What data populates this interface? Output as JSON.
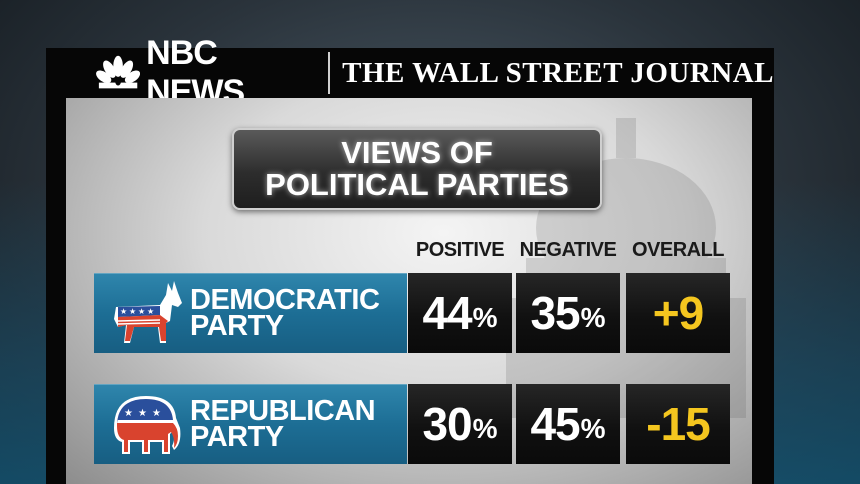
{
  "header": {
    "left_brand": "NBC NEWS",
    "right_brand": "THE WALL STREET JOURNAL"
  },
  "title_lines": [
    "VIEWS OF",
    "POLITICAL PARTIES"
  ],
  "colors": {
    "party_row": "#1d6e95",
    "value_cell": "#111111",
    "overall_text": "#f4c61f"
  },
  "chart_data": {
    "type": "table",
    "title": "VIEWS OF POLITICAL PARTIES",
    "columns": [
      "POSITIVE",
      "NEGATIVE",
      "OVERALL"
    ],
    "rows": [
      {
        "name": "DEMOCRATIC PARTY",
        "name_lines": [
          "DEMOCRATIC",
          "PARTY"
        ],
        "icon": "donkey-icon",
        "positive": 44,
        "negative": 35,
        "overall": "+9"
      },
      {
        "name": "REPUBLICAN PARTY",
        "name_lines": [
          "REPUBLICAN",
          "PARTY"
        ],
        "icon": "elephant-icon",
        "positive": 30,
        "negative": 45,
        "overall": "-15"
      }
    ],
    "unit": "%"
  }
}
